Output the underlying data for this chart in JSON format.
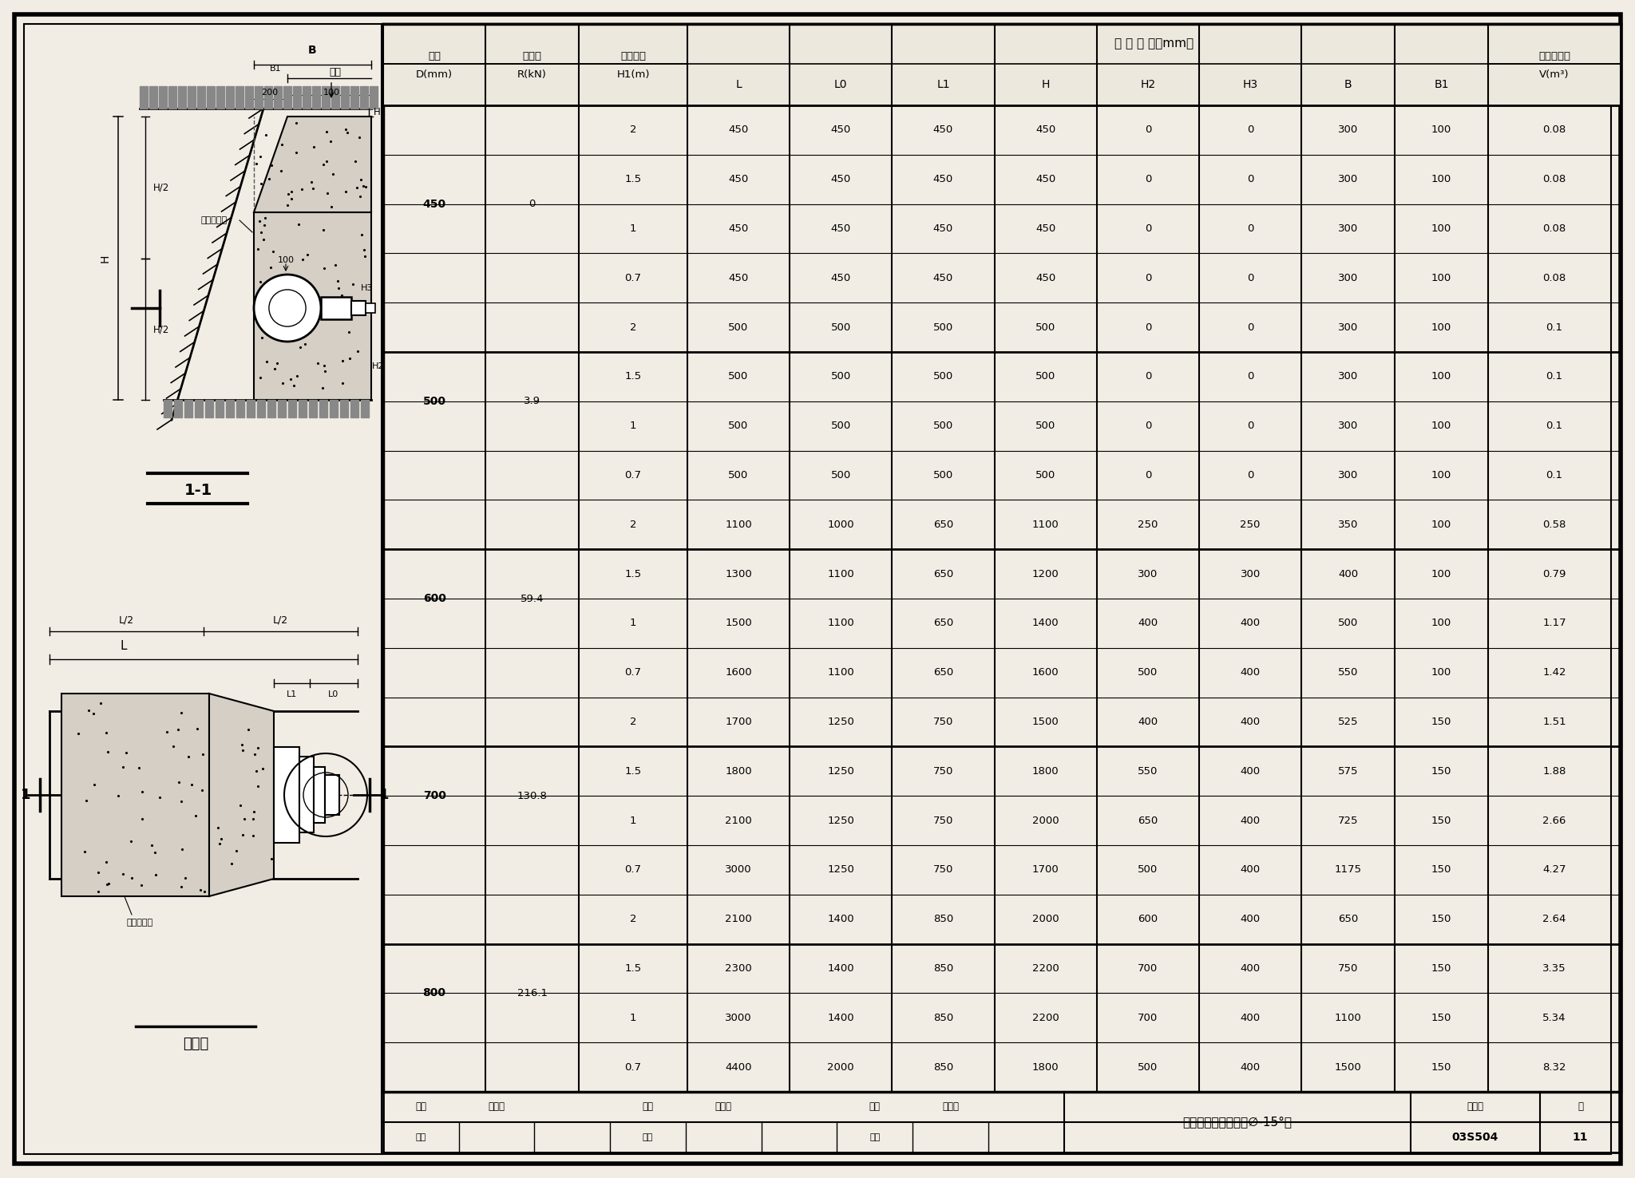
{
  "table_data": [
    [
      "450",
      "0",
      "2",
      "450",
      "450",
      "450",
      "450",
      "0",
      "0",
      "300",
      "100",
      "0.08"
    ],
    [
      "450",
      "0",
      "1.5",
      "450",
      "450",
      "450",
      "450",
      "0",
      "0",
      "300",
      "100",
      "0.08"
    ],
    [
      "450",
      "0",
      "1",
      "450",
      "450",
      "450",
      "450",
      "0",
      "0",
      "300",
      "100",
      "0.08"
    ],
    [
      "450",
      "0",
      "0.7",
      "450",
      "450",
      "450",
      "450",
      "0",
      "0",
      "300",
      "100",
      "0.08"
    ],
    [
      "500",
      "3.9",
      "2",
      "500",
      "500",
      "500",
      "500",
      "0",
      "0",
      "300",
      "100",
      "0.1"
    ],
    [
      "500",
      "3.9",
      "1.5",
      "500",
      "500",
      "500",
      "500",
      "0",
      "0",
      "300",
      "100",
      "0.1"
    ],
    [
      "500",
      "3.9",
      "1",
      "500",
      "500",
      "500",
      "500",
      "0",
      "0",
      "300",
      "100",
      "0.1"
    ],
    [
      "500",
      "3.9",
      "0.7",
      "500",
      "500",
      "500",
      "500",
      "0",
      "0",
      "300",
      "100",
      "0.1"
    ],
    [
      "600",
      "59.4",
      "2",
      "1100",
      "1000",
      "650",
      "1100",
      "250",
      "250",
      "350",
      "100",
      "0.58"
    ],
    [
      "600",
      "59.4",
      "1.5",
      "1300",
      "1100",
      "650",
      "1200",
      "300",
      "300",
      "400",
      "100",
      "0.79"
    ],
    [
      "600",
      "59.4",
      "1",
      "1500",
      "1100",
      "650",
      "1400",
      "400",
      "400",
      "500",
      "100",
      "1.17"
    ],
    [
      "600",
      "59.4",
      "0.7",
      "1600",
      "1100",
      "650",
      "1600",
      "500",
      "400",
      "550",
      "100",
      "1.42"
    ],
    [
      "700",
      "130.8",
      "2",
      "1700",
      "1250",
      "750",
      "1500",
      "400",
      "400",
      "525",
      "150",
      "1.51"
    ],
    [
      "700",
      "130.8",
      "1.5",
      "1800",
      "1250",
      "750",
      "1800",
      "550",
      "400",
      "575",
      "150",
      "1.88"
    ],
    [
      "700",
      "130.8",
      "1",
      "2100",
      "1250",
      "750",
      "2000",
      "650",
      "400",
      "725",
      "150",
      "2.66"
    ],
    [
      "700",
      "130.8",
      "0.7",
      "3000",
      "1250",
      "750",
      "1700",
      "500",
      "400",
      "1175",
      "150",
      "4.27"
    ],
    [
      "800",
      "216.1",
      "2",
      "2100",
      "1400",
      "850",
      "2000",
      "600",
      "400",
      "650",
      "150",
      "2.64"
    ],
    [
      "800",
      "216.1",
      "1.5",
      "2300",
      "1400",
      "850",
      "2200",
      "700",
      "400",
      "750",
      "150",
      "3.35"
    ],
    [
      "800",
      "216.1",
      "1",
      "3000",
      "1400",
      "850",
      "2200",
      "700",
      "400",
      "1100",
      "150",
      "5.34"
    ],
    [
      "800",
      "216.1",
      "0.7",
      "4400",
      "2000",
      "850",
      "1800",
      "500",
      "400",
      "1500",
      "150",
      "8.32"
    ]
  ],
  "bg_color": "#ffffff",
  "paper_color": "#f2ede4"
}
